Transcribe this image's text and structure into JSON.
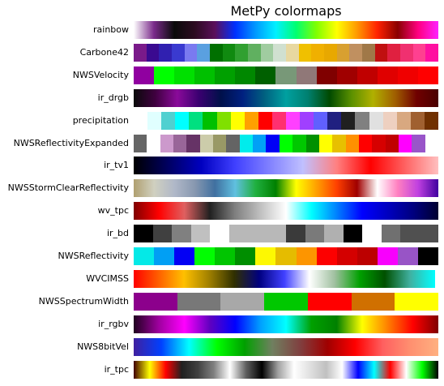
{
  "chart_data": {
    "type": "heatmap",
    "title": "MetPy colormaps",
    "xlabel": "",
    "ylabel": "",
    "grid": false,
    "colormaps": [
      {
        "name": "rainbow",
        "kind": "gradient",
        "extent": 1.0,
        "stops": [
          "#ffffff",
          "#7a2a8a",
          "#0a0a0a",
          "#2c0a20",
          "#5a0f5a",
          "#0030ff",
          "#0099ff",
          "#00f0ff",
          "#00ff70",
          "#80ff00",
          "#ffff00",
          "#ff9900",
          "#ff2200",
          "#8a0000",
          "#ff0080",
          "#ff20ff"
        ]
      },
      {
        "name": "Carbone42",
        "kind": "discrete",
        "extent": 1.0,
        "colors": [
          "#7a1a8a",
          "#3a0a90",
          "#3020b0",
          "#3a3ad0",
          "#7a7af0",
          "#5aa0e0",
          "#007000",
          "#108a10",
          "#30a030",
          "#60b060",
          "#a0cca0",
          "#d0e0d0",
          "#e8d8a0",
          "#f0c000",
          "#f0b000",
          "#e8a800",
          "#d8a030",
          "#c09060",
          "#a07848",
          "#c01010",
          "#e02040",
          "#f03070",
          "#ff4090",
          "#ff10a0"
        ]
      },
      {
        "name": "NWSVelocity",
        "kind": "discrete",
        "extent": 1.0,
        "colors": [
          "#9000a0",
          "#00ff00",
          "#00e000",
          "#00c000",
          "#00a000",
          "#008800",
          "#006000",
          "#789878",
          "#907878",
          "#800000",
          "#a00000",
          "#c00000",
          "#e00000",
          "#f00000",
          "#ff0000"
        ]
      },
      {
        "name": "ir_drgb",
        "kind": "gradient",
        "extent": 1.0,
        "stops": [
          "#0a0a0a",
          "#400040",
          "#8a0a9a",
          "#3a0070",
          "#00104a",
          "#002080",
          "#006080",
          "#00a0a0",
          "#008070",
          "#004a00",
          "#5a9000",
          "#b0b000",
          "#a06000",
          "#700000",
          "#4a0000"
        ]
      },
      {
        "name": "precipitation",
        "kind": "discrete",
        "extent": 1.0,
        "colors": [
          "#ffffff",
          "#e0ffff",
          "#50d0d0",
          "#00ffff",
          "#00e080",
          "#00c000",
          "#80e000",
          "#ffff00",
          "#ffa000",
          "#ff0000",
          "#ff3070",
          "#ff40ff",
          "#a040ff",
          "#6060ff",
          "#202080",
          "#202020",
          "#808080",
          "#e0e0e0",
          "#eed0c0",
          "#d8a880",
          "#a06030",
          "#703000"
        ]
      },
      {
        "name": "NWSReflectivityExpanded",
        "kind": "discrete",
        "extent": 1.0,
        "colors": [
          "#666666",
          "#ffffff",
          "#cc99cc",
          "#996699",
          "#663366",
          "#ccccaa",
          "#999966",
          "#646464",
          "#00ecec",
          "#01a0f6",
          "#0000f6",
          "#00ff00",
          "#00c800",
          "#009000",
          "#ffff00",
          "#e7c000",
          "#ff9000",
          "#ff0000",
          "#d60000",
          "#c00000",
          "#ff00ff",
          "#9955c9",
          "#ffffff"
        ]
      },
      {
        "name": "ir_tv1",
        "kind": "gradient",
        "extent": 1.0,
        "stops": [
          "#000000",
          "#000060",
          "#0000c0",
          "#4040ff",
          "#8080ff",
          "#c0c0ff",
          "#ff8080",
          "#ff0000",
          "#ff6060",
          "#ffc0c0"
        ]
      },
      {
        "name": "NWSStormClearReflectivity",
        "kind": "gradient",
        "extent": 1.0,
        "stops": [
          "#b0a070",
          "#d0d0c0",
          "#b0b8c8",
          "#8898b0",
          "#4070a0",
          "#60c0e0",
          "#20b040",
          "#008000",
          "#ffff00",
          "#ffa000",
          "#ff4000",
          "#a00000",
          "#ffffff",
          "#ff80c0",
          "#c040e0",
          "#4000a0"
        ]
      },
      {
        "name": "wv_tpc",
        "kind": "gradient",
        "extent": 1.0,
        "stops": [
          "#800000",
          "#ff0000",
          "#e06060",
          "#202020",
          "#808080",
          "#c0c0c0",
          "#ffffff",
          "#00ffff",
          "#0080ff",
          "#0000ff",
          "#0000c0",
          "#000080",
          "#000030"
        ]
      },
      {
        "name": "ir_bd",
        "kind": "discrete",
        "extent": 1.0,
        "colors": [
          "#000000",
          "#404040",
          "#808080",
          "#c0c0c0",
          "#ffffff",
          "#b8b8b8",
          "#b8b8b8",
          "#b8b8b8",
          "#3a3a3a",
          "#7a7a7a",
          "#b0b0b0",
          "#000000",
          "#ffffff",
          "#707070",
          "#505050",
          "#505050"
        ]
      },
      {
        "name": "NWSReflectivity",
        "kind": "discrete",
        "extent": 1.0,
        "colors": [
          "#04e9e7",
          "#019ff4",
          "#0300f4",
          "#02fd02",
          "#01c501",
          "#008e00",
          "#fdf802",
          "#e5bc00",
          "#fd9500",
          "#fd0000",
          "#d40000",
          "#bc0000",
          "#f800fd",
          "#9854c6",
          "#000000"
        ]
      },
      {
        "name": "WVCIMSS",
        "kind": "gradient",
        "extent": 0.99,
        "stops": [
          "#ff0000",
          "#ff6000",
          "#ffc000",
          "#a08000",
          "#303000",
          "#000080",
          "#4040ff",
          "#ffffff",
          "#a0c0a0",
          "#00a000",
          "#005000",
          "#40b0a0",
          "#00ffff"
        ]
      },
      {
        "name": "NWSSpectrumWidth",
        "kind": "discrete",
        "extent": 1.0,
        "colors": [
          "#8c008c",
          "#787878",
          "#a8a8a8",
          "#00c800",
          "#ff0000",
          "#d07000",
          "#ffff00"
        ]
      },
      {
        "name": "ir_rgbv",
        "kind": "gradient",
        "extent": 1.0,
        "stops": [
          "#200020",
          "#a000a0",
          "#ff00ff",
          "#6000c0",
          "#0000ff",
          "#00a0ff",
          "#00ffff",
          "#00a000",
          "#008000",
          "#ffff00",
          "#ff8000",
          "#ff0000",
          "#800000"
        ]
      },
      {
        "name": "NWS8bitVel",
        "kind": "gradient",
        "extent": 1.0,
        "stops": [
          "#4020a0",
          "#0040ff",
          "#00ffff",
          "#00ff00",
          "#00a000",
          "#708060",
          "#804040",
          "#a00000",
          "#ff0000",
          "#ff6060",
          "#ff9070",
          "#ffb080"
        ]
      },
      {
        "name": "ir_tpc",
        "kind": "gradient",
        "extent": 1.0,
        "stops": [
          "#400000",
          "#ffff00",
          "#ff0000",
          "#202020",
          "#404040",
          "#808080",
          "#ffffff",
          "#606060",
          "#000000",
          "#a0a0a0",
          "#ffffff",
          "#e0e0e0",
          "#c0c0c0",
          "#ffffff",
          "#0000ff",
          "#00ffff",
          "#ff0000",
          "#ffffff",
          "#00ff00",
          "#000000"
        ]
      }
    ]
  }
}
